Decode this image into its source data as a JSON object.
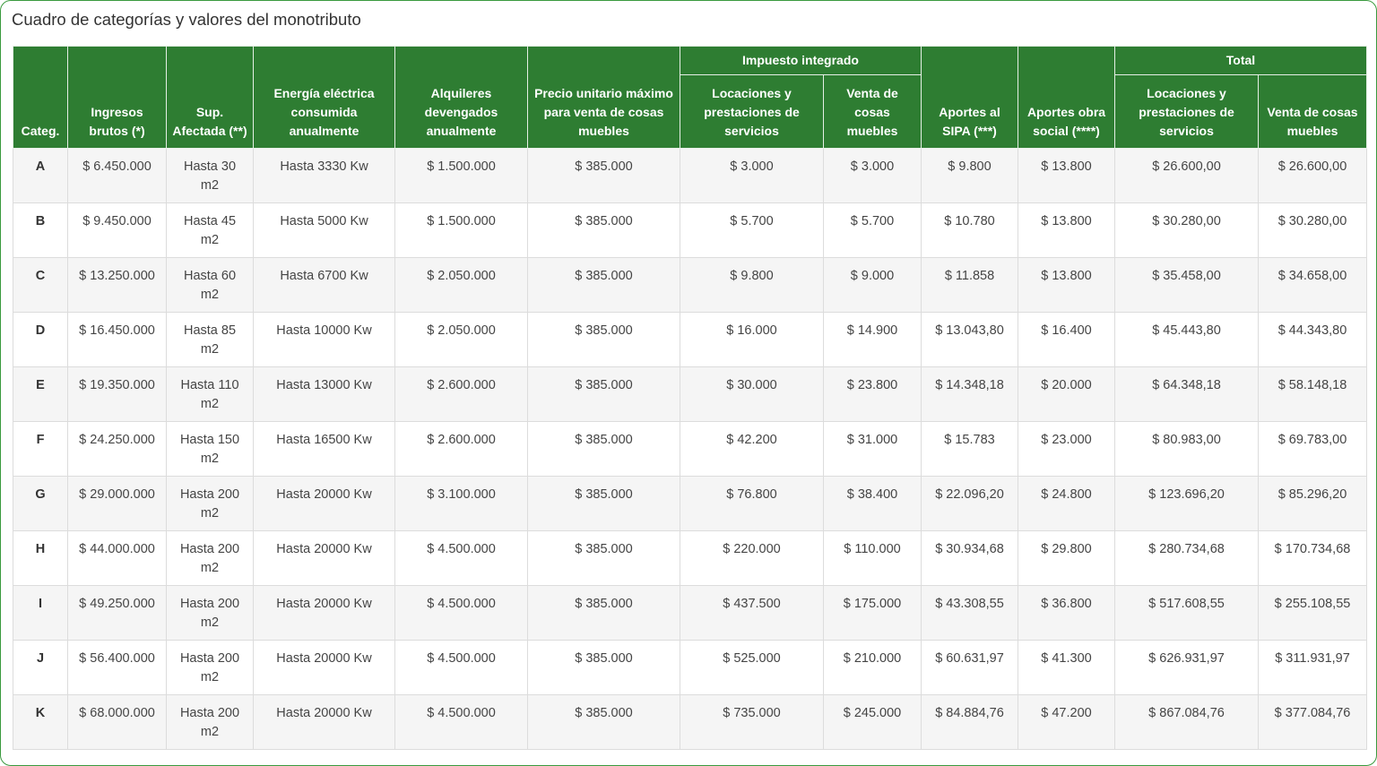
{
  "title": "Cuadro de categorías y valores del monotributo",
  "table": {
    "header_top": [
      "Categ.",
      "Ingresos brutos (*)",
      "Sup. Afectada (**)",
      "Energía eléctrica consumida anualmente",
      "Alquileres devengados anualmente",
      "Precio unitario máximo para venta de cosas muebles",
      "Impuesto integrado",
      "Aportes al SIPA (***)",
      "Aportes obra social (****)",
      "Total"
    ],
    "header_sub": [
      "Locaciones y prestaciones de servicios",
      "Venta de cosas muebles",
      "Locaciones y prestaciones de servicios",
      "Venta de cosas muebles"
    ],
    "rows": [
      [
        "A",
        "$ 6.450.000",
        "Hasta 30 m2",
        "Hasta 3330 Kw",
        "$ 1.500.000",
        "$ 385.000",
        "$ 3.000",
        "$ 3.000",
        "$ 9.800",
        "$ 13.800",
        "$ 26.600,00",
        "$ 26.600,00"
      ],
      [
        "B",
        "$ 9.450.000",
        "Hasta 45 m2",
        "Hasta 5000 Kw",
        "$ 1.500.000",
        "$ 385.000",
        "$ 5.700",
        "$ 5.700",
        "$ 10.780",
        "$ 13.800",
        "$ 30.280,00",
        "$ 30.280,00"
      ],
      [
        "C",
        "$ 13.250.000",
        "Hasta 60 m2",
        "Hasta 6700 Kw",
        "$ 2.050.000",
        "$ 385.000",
        "$ 9.800",
        "$ 9.000",
        "$ 11.858",
        "$ 13.800",
        "$ 35.458,00",
        "$ 34.658,00"
      ],
      [
        "D",
        "$ 16.450.000",
        "Hasta 85 m2",
        "Hasta 10000 Kw",
        "$ 2.050.000",
        "$ 385.000",
        "$ 16.000",
        "$ 14.900",
        "$ 13.043,80",
        "$ 16.400",
        "$ 45.443,80",
        "$ 44.343,80"
      ],
      [
        "E",
        "$ 19.350.000",
        "Hasta 110 m2",
        "Hasta 13000 Kw",
        "$ 2.600.000",
        "$ 385.000",
        "$ 30.000",
        "$ 23.800",
        "$ 14.348,18",
        "$ 20.000",
        "$ 64.348,18",
        "$ 58.148,18"
      ],
      [
        "F",
        "$ 24.250.000",
        "Hasta 150 m2",
        "Hasta 16500 Kw",
        "$ 2.600.000",
        "$ 385.000",
        "$ 42.200",
        "$ 31.000",
        "$ 15.783",
        "$ 23.000",
        "$ 80.983,00",
        "$ 69.783,00"
      ],
      [
        "G",
        "$ 29.000.000",
        "Hasta 200 m2",
        "Hasta 20000 Kw",
        "$ 3.100.000",
        "$ 385.000",
        "$ 76.800",
        "$ 38.400",
        "$ 22.096,20",
        "$ 24.800",
        "$ 123.696,20",
        "$ 85.296,20"
      ],
      [
        "H",
        "$ 44.000.000",
        "Hasta 200 m2",
        "Hasta 20000 Kw",
        "$ 4.500.000",
        "$ 385.000",
        "$ 220.000",
        "$ 110.000",
        "$ 30.934,68",
        "$ 29.800",
        "$ 280.734,68",
        "$ 170.734,68"
      ],
      [
        "I",
        "$ 49.250.000",
        "Hasta 200 m2",
        "Hasta 20000 Kw",
        "$ 4.500.000",
        "$ 385.000",
        "$ 437.500",
        "$ 175.000",
        "$ 43.308,55",
        "$ 36.800",
        "$ 517.608,55",
        "$ 255.108,55"
      ],
      [
        "J",
        "$ 56.400.000",
        "Hasta 200 m2",
        "Hasta 20000 Kw",
        "$ 4.500.000",
        "$ 385.000",
        "$ 525.000",
        "$ 210.000",
        "$ 60.631,97",
        "$ 41.300",
        "$ 626.931,97",
        "$ 311.931,97"
      ],
      [
        "K",
        "$ 68.000.000",
        "Hasta 200 m2",
        "Hasta 20000 Kw",
        "$ 4.500.000",
        "$ 385.000",
        "$ 735.000",
        "$ 245.000",
        "$ 84.884,76",
        "$ 47.200",
        "$ 867.084,76",
        "$ 377.084,76"
      ]
    ]
  }
}
